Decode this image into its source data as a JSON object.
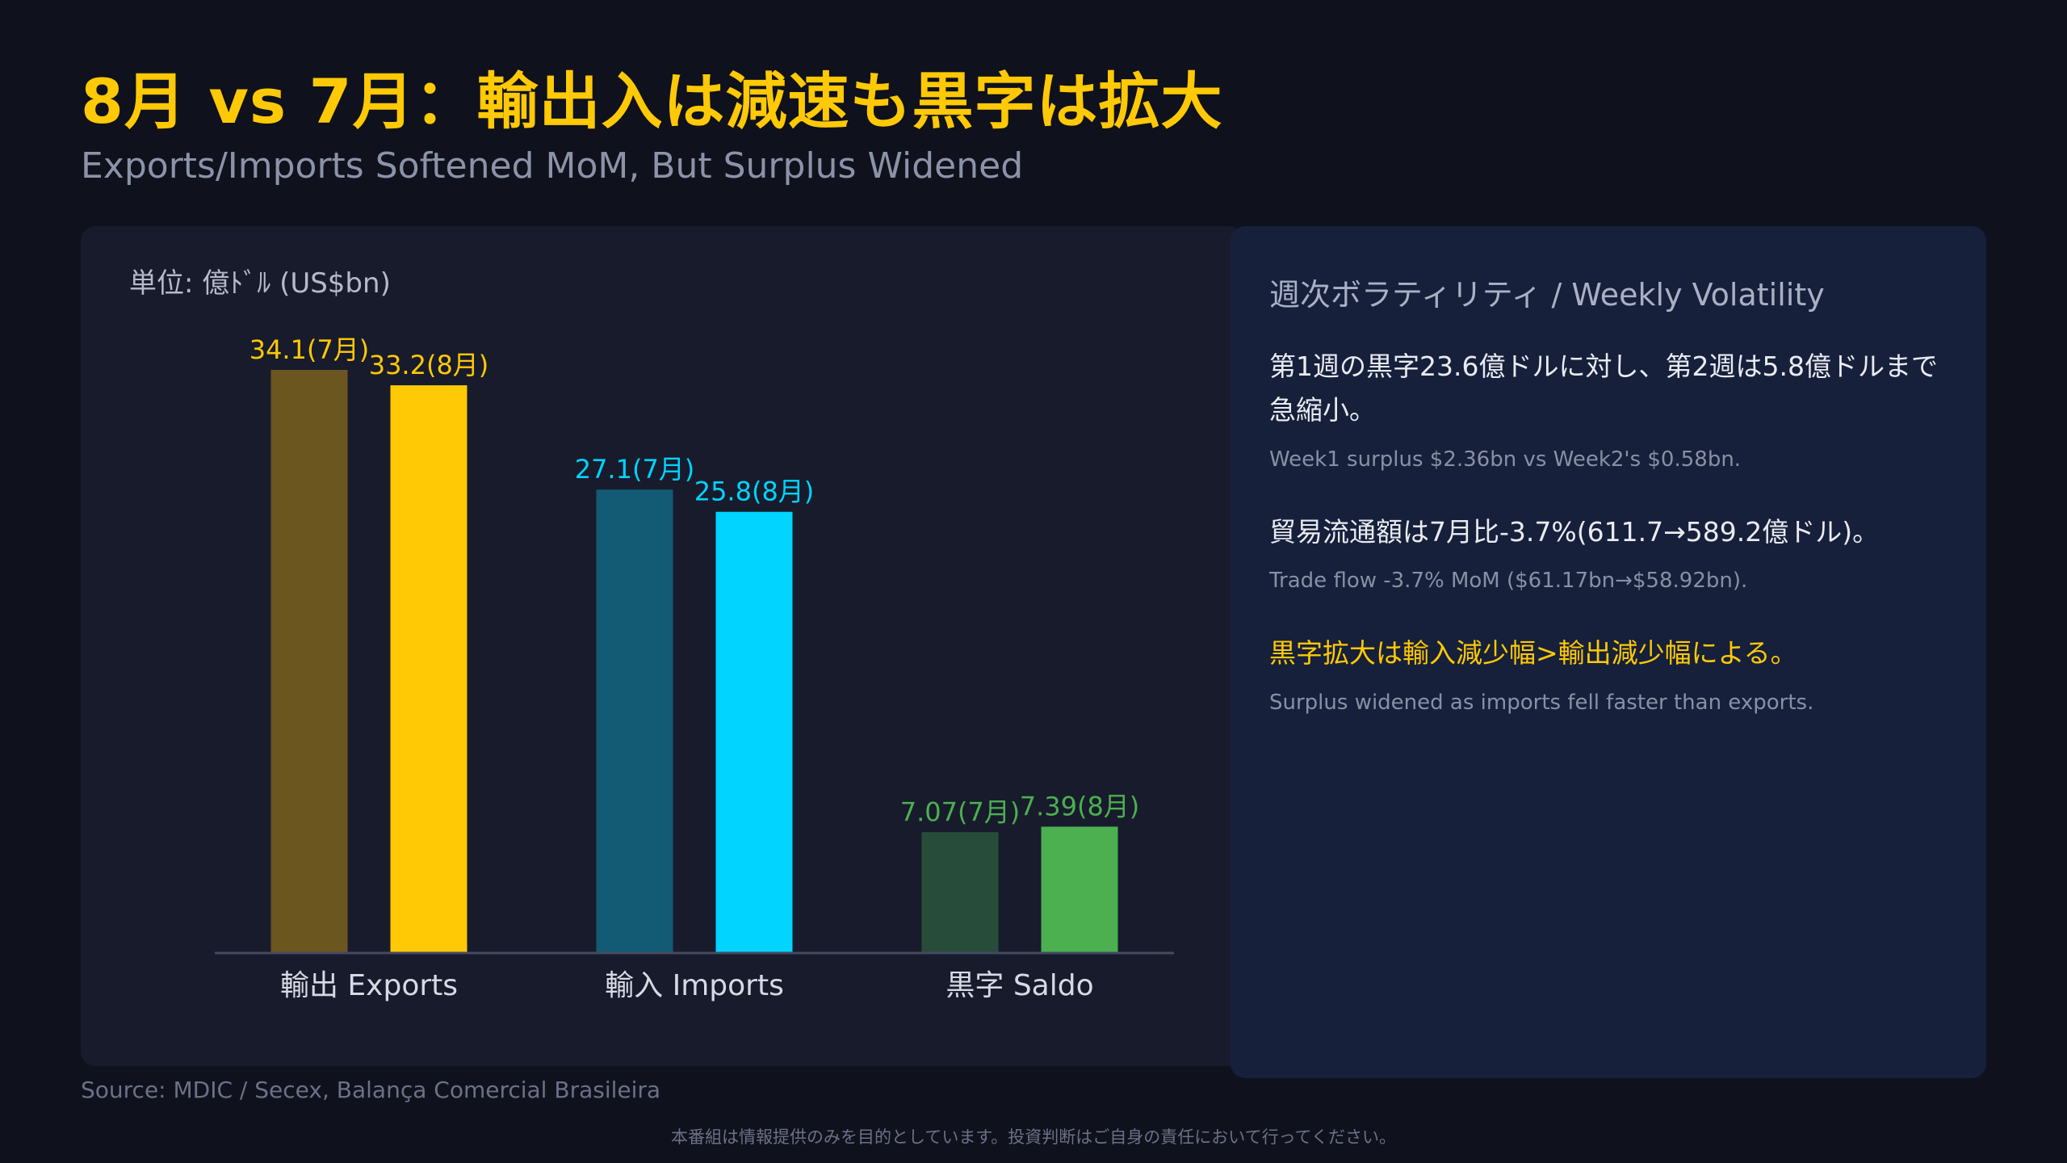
{
  "header": {
    "title": "8月 vs 7月：輸出入は減速も黒字は拡大",
    "subtitle": "Exports/Imports Softened MoM, But Surplus Widened"
  },
  "chart_data": {
    "type": "bar",
    "unit_label": "単位: 億ﾄﾞﾙ (US$bn)",
    "categories": [
      "輸出 Exports",
      "輸入 Imports",
      "黒字 Saldo"
    ],
    "series": [
      {
        "name": "7月",
        "values": [
          34.1,
          27.1,
          7.07
        ],
        "labels": [
          "34.1(7月)",
          "27.1(7月)",
          "7.07(7月)"
        ]
      },
      {
        "name": "8月",
        "values": [
          33.2,
          25.8,
          7.39
        ],
        "labels": [
          "33.2(8月)",
          "25.8(8月)",
          "7.39(8月)"
        ]
      }
    ],
    "colors": {
      "dim": [
        "#6b5620",
        "#135a74",
        "#284c3a"
      ],
      "bright": [
        "#ffc905",
        "#00d4ff",
        "#4caf50"
      ]
    },
    "ylim": [
      0,
      34.1
    ],
    "legend": "none",
    "grid": false
  },
  "info": {
    "title": "週次ボラティリティ / Weekly Volatility",
    "items": [
      {
        "jp": "第1週の黒字23.6億ドルに対し、第2週は5.8億ドルまで急縮小。",
        "en": "Week1 surplus $2.36bn vs Week2's $0.58bn."
      },
      {
        "jp": "貿易流通額は7月比-3.7%(611.7→589.2億ドル)。",
        "en": "Trade flow -3.7% MoM ($61.17bn→$58.92bn)."
      },
      {
        "jp": "黒字拡大は輸入減少幅>輸出減少幅による。",
        "en": "Surplus widened as imports fell faster than exports."
      }
    ],
    "accent_color": "#ffc905"
  },
  "footer": {
    "source": "Source: MDIC / Secex, Balança Comercial Brasileira",
    "disclaimer": "本番組は情報提供のみを目的としています。投資判断はご自身の責任において行ってください。"
  }
}
